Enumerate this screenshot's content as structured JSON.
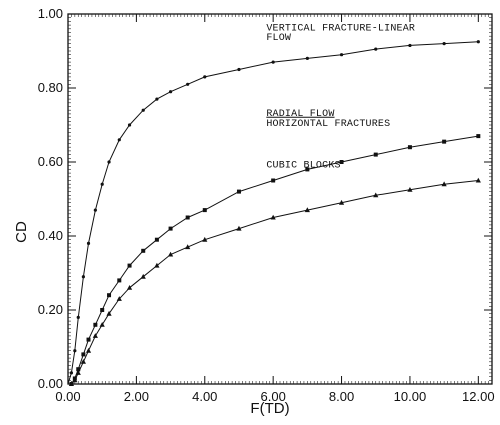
{
  "chart_data": {
    "type": "line",
    "xlabel": "F(TD)",
    "ylabel": "CD",
    "xlim": [
      0,
      12.4
    ],
    "ylim": [
      0,
      1.0
    ],
    "x_ticks": [
      "0.00",
      "2.00",
      "4.00",
      "6.00",
      "8.00",
      "10.00",
      "12.00"
    ],
    "y_ticks": [
      "0.00",
      "0.20",
      "0.40",
      "0.60",
      "0.80",
      "1.00"
    ],
    "grid": false,
    "series": [
      {
        "name": "VERTICAL FRACTURE-LINEAR FLOW",
        "marker": "dot",
        "x": [
          0.1,
          0.2,
          0.3,
          0.45,
          0.6,
          0.8,
          1.0,
          1.2,
          1.5,
          1.8,
          2.2,
          2.6,
          3.0,
          3.5,
          4.0,
          5.0,
          6.0,
          7.0,
          8.0,
          9.0,
          10.0,
          11.0,
          12.0
        ],
        "y": [
          0.03,
          0.09,
          0.18,
          0.29,
          0.38,
          0.47,
          0.54,
          0.6,
          0.66,
          0.7,
          0.74,
          0.77,
          0.79,
          0.81,
          0.83,
          0.85,
          0.87,
          0.88,
          0.89,
          0.905,
          0.915,
          0.92,
          0.925
        ]
      },
      {
        "name": "RADIAL FLOW HORIZONTAL FRACTURES",
        "marker": "square",
        "x": [
          0.1,
          0.2,
          0.3,
          0.45,
          0.6,
          0.8,
          1.0,
          1.2,
          1.5,
          1.8,
          2.2,
          2.6,
          3.0,
          3.5,
          4.0,
          5.0,
          6.0,
          7.0,
          8.0,
          9.0,
          10.0,
          11.0,
          12.0
        ],
        "y": [
          0.0,
          0.015,
          0.04,
          0.08,
          0.12,
          0.16,
          0.2,
          0.24,
          0.28,
          0.32,
          0.36,
          0.39,
          0.42,
          0.45,
          0.47,
          0.52,
          0.55,
          0.58,
          0.6,
          0.62,
          0.64,
          0.655,
          0.67
        ]
      },
      {
        "name": "CUBIC BLOCKS",
        "marker": "triangle",
        "x": [
          0.1,
          0.2,
          0.3,
          0.45,
          0.6,
          0.8,
          1.0,
          1.2,
          1.5,
          1.8,
          2.2,
          2.6,
          3.0,
          3.5,
          4.0,
          5.0,
          6.0,
          7.0,
          8.0,
          9.0,
          10.0,
          11.0,
          12.0
        ],
        "y": [
          0.0,
          0.01,
          0.03,
          0.06,
          0.09,
          0.13,
          0.16,
          0.19,
          0.23,
          0.26,
          0.29,
          0.32,
          0.35,
          0.37,
          0.39,
          0.42,
          0.45,
          0.47,
          0.49,
          0.51,
          0.525,
          0.54,
          0.55
        ]
      }
    ],
    "annotations": [
      {
        "text": "VERTICAL FRACTURE-LINEAR",
        "x": 5.8,
        "y": 0.955,
        "underline": false
      },
      {
        "text": "FLOW",
        "x": 5.8,
        "y": 0.93,
        "underline": false
      },
      {
        "text": "RADIAL FLOW",
        "x": 5.8,
        "y": 0.725,
        "underline": true
      },
      {
        "text": "HORIZONTAL FRACTURES",
        "x": 5.8,
        "y": 0.697,
        "underline": false
      },
      {
        "text": "CUBIC BLOCKS",
        "x": 5.8,
        "y": 0.585,
        "underline": false
      }
    ]
  }
}
